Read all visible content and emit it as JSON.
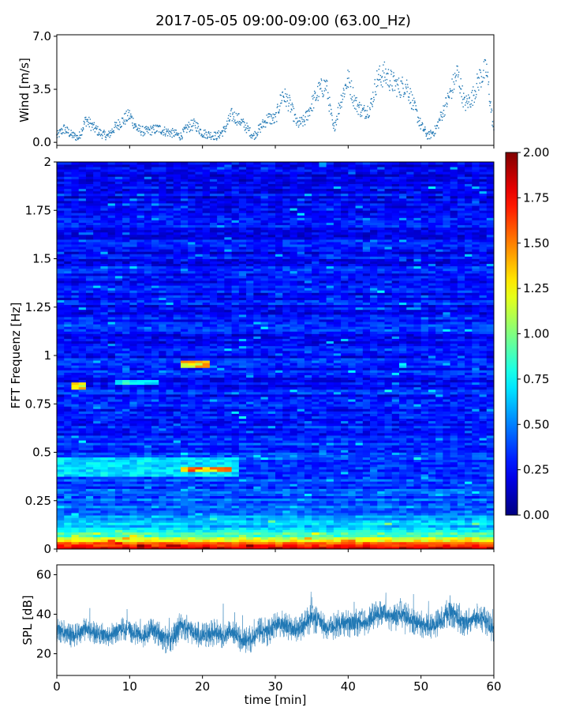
{
  "chart_data": [
    {
      "type": "scatter",
      "title": "2017-05-05 09:00-09:00 (63.00_Hz)",
      "xlabel": "",
      "ylabel": "Wind [m/s]",
      "xlim": [
        0,
        60
      ],
      "ylim": [
        -0.2,
        7.1
      ],
      "yticks": [
        "0.0",
        "3.5",
        "7.0"
      ],
      "yticks_values": [
        0,
        3.5,
        7.0
      ],
      "color": "#1f77b4",
      "series": [
        {
          "x": [
            0,
            1,
            2,
            3,
            4,
            5,
            6,
            7,
            8,
            9,
            10,
            11,
            12,
            13,
            14,
            15,
            16,
            17,
            18,
            19,
            20,
            21,
            22,
            23,
            24,
            25,
            26,
            27,
            28,
            29,
            30,
            31,
            32,
            33,
            34,
            35,
            36,
            37,
            38,
            39,
            40,
            41,
            42,
            43,
            44,
            45,
            46,
            47,
            48,
            49,
            50,
            51,
            52,
            53,
            54,
            55,
            56,
            57,
            58,
            59,
            60
          ],
          "y": [
            0.4,
            0.9,
            0.5,
            0.3,
            1.5,
            1.0,
            0.6,
            0.4,
            1.0,
            1.4,
            1.8,
            0.9,
            0.7,
            0.8,
            0.9,
            0.7,
            0.6,
            0.4,
            1.0,
            1.2,
            0.6,
            0.5,
            0.4,
            0.8,
            1.8,
            1.5,
            1.0,
            0.4,
            1.0,
            1.6,
            1.5,
            3.2,
            2.5,
            1.2,
            1.4,
            2.5,
            3.4,
            3.8,
            0.8,
            2.8,
            4.2,
            2.6,
            2.0,
            2.2,
            4.2,
            4.5,
            4.0,
            3.6,
            3.8,
            2.4,
            1.1,
            0.4,
            0.8,
            2.0,
            3.2,
            4.6,
            2.5,
            2.9,
            4.2,
            4.8,
            0.6
          ]
        }
      ]
    },
    {
      "type": "heatmap",
      "title": "",
      "xlabel": "",
      "ylabel": "FFT Frequenz [Hz]",
      "xlim": [
        0,
        60
      ],
      "ylim": [
        0,
        2
      ],
      "yticks": [
        "0",
        "0.25",
        "0.5",
        "0.75",
        "1",
        "1.25",
        "1.5",
        "1.75",
        "2"
      ],
      "yticks_values": [
        0,
        0.25,
        0.5,
        0.75,
        1,
        1.25,
        1.5,
        1.75,
        2
      ],
      "colormap": "jet",
      "colorbar": {
        "vmin": 0.0,
        "vmax": 2.0,
        "ticks": [
          "0.00",
          "0.25",
          "0.50",
          "0.75",
          "1.00",
          "1.25",
          "1.50",
          "1.75",
          "2.00"
        ],
        "ticks_values": [
          0,
          0.25,
          0.5,
          0.75,
          1,
          1.25,
          1.5,
          1.75,
          2
        ]
      },
      "profile": {
        "freq": [
          0,
          0.02,
          0.05,
          0.1,
          0.15,
          0.2,
          0.3,
          0.4,
          0.5,
          0.75,
          1.0,
          1.5,
          2.0
        ],
        "level": [
          1.9,
          1.7,
          1.1,
          0.7,
          0.55,
          0.45,
          0.38,
          0.35,
          0.32,
          0.3,
          0.28,
          0.26,
          0.22
        ]
      },
      "patches": [
        {
          "t": [
            2,
            4
          ],
          "f": [
            0.82,
            0.86
          ],
          "value": 1.5
        },
        {
          "t": [
            17,
            21
          ],
          "f": [
            0.94,
            0.98
          ],
          "value": 1.5
        },
        {
          "t": [
            17,
            24
          ],
          "f": [
            0.4,
            0.43
          ],
          "value": 1.7
        },
        {
          "t": [
            0,
            25
          ],
          "f": [
            0.38,
            0.48
          ],
          "value": 0.8
        },
        {
          "t": [
            8,
            14
          ],
          "f": [
            0.85,
            0.88
          ],
          "value": 0.9
        }
      ]
    },
    {
      "type": "area",
      "title": "",
      "xlabel": "time [min]",
      "ylabel": "SPL [dB]",
      "xlim": [
        0,
        60
      ],
      "ylim": [
        9,
        65
      ],
      "yticks": [
        "20",
        "40",
        "60"
      ],
      "yticks_values": [
        20,
        40,
        60
      ],
      "xticks": [
        "0",
        "10",
        "20",
        "30",
        "40",
        "50",
        "60"
      ],
      "xticks_values": [
        0,
        10,
        20,
        30,
        40,
        50,
        60
      ],
      "color": "#1f77b4",
      "series": [
        {
          "x": [
            0,
            1,
            2,
            3,
            4,
            5,
            6,
            7,
            8,
            9,
            10,
            11,
            12,
            13,
            14,
            15,
            16,
            17,
            18,
            19,
            20,
            21,
            22,
            23,
            24,
            25,
            26,
            27,
            28,
            29,
            30,
            31,
            32,
            33,
            34,
            35,
            36,
            37,
            38,
            39,
            40,
            41,
            42,
            43,
            44,
            45,
            46,
            47,
            48,
            49,
            50,
            51,
            52,
            53,
            54,
            55,
            56,
            57,
            58,
            59,
            60
          ],
          "center": [
            32,
            31,
            29,
            30,
            33,
            31,
            30,
            29,
            31,
            33,
            32,
            30,
            29,
            33,
            30,
            27,
            28,
            35,
            33,
            30,
            29,
            30,
            31,
            29,
            31,
            28,
            27,
            28,
            32,
            31,
            34,
            35,
            33,
            32,
            35,
            38,
            37,
            32,
            34,
            36,
            35,
            36,
            35,
            38,
            40,
            41,
            38,
            40,
            39,
            36,
            35,
            34,
            35,
            38,
            42,
            38,
            35,
            37,
            39,
            36,
            31
          ],
          "spread": [
            6,
            6,
            6,
            6,
            6,
            6,
            6,
            6,
            6,
            6,
            6,
            6,
            6,
            7,
            7,
            7,
            7,
            8,
            7,
            7,
            7,
            7,
            7,
            7,
            7,
            7,
            7,
            7,
            7,
            7,
            7,
            7,
            7,
            7,
            7,
            8,
            7,
            7,
            7,
            7,
            7,
            7,
            7,
            7,
            7,
            7,
            7,
            7,
            7,
            7,
            7,
            7,
            7,
            7,
            8,
            7,
            7,
            7,
            7,
            7,
            7
          ]
        }
      ]
    }
  ]
}
